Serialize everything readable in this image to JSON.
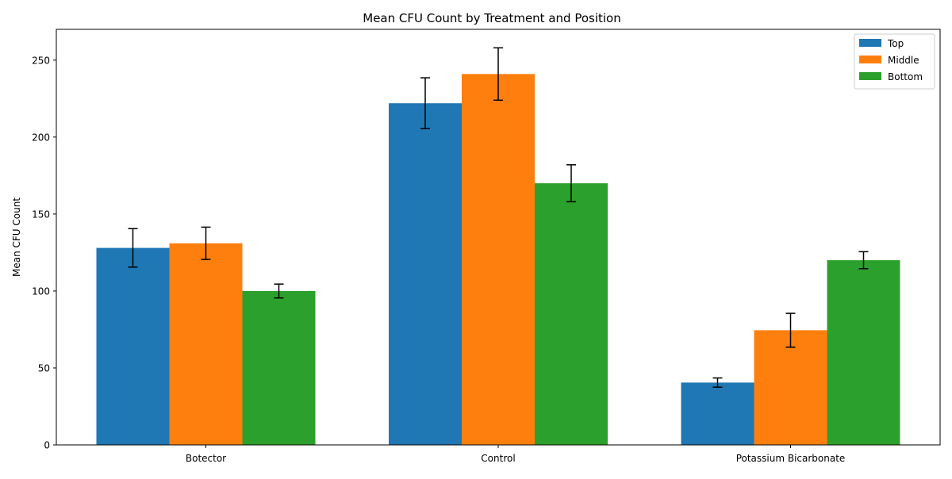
{
  "chart_data": {
    "type": "bar",
    "title": "Mean CFU Count by Treatment and Position",
    "xlabel": "",
    "ylabel": "Mean CFU Count",
    "categories": [
      "Botector",
      "Control",
      "Potassium Bicarbonate"
    ],
    "ylim": [
      0,
      270
    ],
    "yticks": [
      0,
      50,
      100,
      150,
      200,
      250
    ],
    "grid": false,
    "legend_position": "top-right",
    "series": [
      {
        "name": "Top",
        "color": "#1f77b4",
        "values": [
          128.0,
          222.0,
          40.5
        ],
        "errors": [
          12.5,
          16.5,
          3.0
        ]
      },
      {
        "name": "Middle",
        "color": "#ff7f0e",
        "values": [
          131.0,
          241.0,
          74.5
        ],
        "errors": [
          10.5,
          17.0,
          11.0
        ]
      },
      {
        "name": "Bottom",
        "color": "#2ca02c",
        "values": [
          100.0,
          170.0,
          120.0
        ],
        "errors": [
          4.5,
          12.0,
          5.5
        ]
      }
    ]
  }
}
